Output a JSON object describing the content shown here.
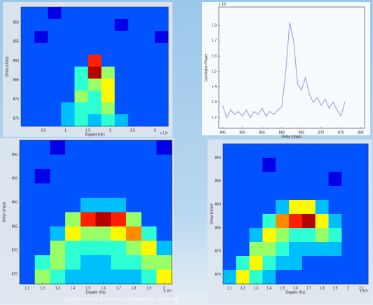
{
  "chart_data": [
    {
      "type": "heatmap",
      "colormap": "jet",
      "y_reversed": true,
      "x_label": "Doppler (Hz)",
      "y_label": "Delay (chips)",
      "x_exponent": "x 10⁴",
      "xlim": [
        0,
        3.3
      ],
      "ylim": [
        846,
        877
      ],
      "xticks": [
        0.5,
        1,
        1.5,
        2,
        2.5,
        3
      ],
      "yticks": [
        850,
        855,
        860,
        865,
        870,
        875
      ],
      "z": [
        [
          2,
          2,
          1,
          2,
          2,
          2,
          2,
          2,
          2,
          2,
          2
        ],
        [
          2,
          2,
          2,
          2,
          2,
          2,
          2,
          1,
          2,
          2,
          2
        ],
        [
          2,
          1,
          2,
          2,
          2,
          2,
          2,
          2,
          2,
          2,
          1
        ],
        [
          2,
          2,
          2,
          2,
          2,
          2,
          2,
          2,
          2,
          2,
          2
        ],
        [
          2,
          2,
          2,
          2,
          2,
          8,
          2,
          2,
          2,
          2,
          2
        ],
        [
          2,
          2,
          2,
          2,
          4,
          9,
          5,
          2,
          2,
          2,
          2
        ],
        [
          2,
          2,
          2,
          2,
          4,
          5,
          6,
          2,
          2,
          2,
          2
        ],
        [
          2,
          2,
          2,
          2,
          5,
          4,
          6,
          2,
          2,
          2,
          2
        ],
        [
          2,
          2,
          2,
          3,
          4,
          4,
          5,
          2,
          2,
          2,
          2
        ],
        [
          2,
          2,
          2,
          3,
          4,
          3,
          4,
          3,
          2,
          2,
          2
        ]
      ]
    },
    {
      "type": "line",
      "x_label": "Delay (chips)",
      "y_label": "Correlation Power",
      "y_exponent": "x 10⁵",
      "color": "#aaa6e2",
      "xlim": [
        844,
        881
      ],
      "ylim": [
        1.13,
        1.92
      ],
      "xticks": [
        845,
        850,
        855,
        860,
        865,
        870,
        875,
        880
      ],
      "yticks": [
        1.2,
        1.3,
        1.4,
        1.5,
        1.6,
        1.7,
        1.8
      ],
      "x": [
        845,
        846,
        847,
        848,
        849,
        850,
        851,
        852,
        853,
        854,
        855,
        856,
        857,
        858,
        859,
        860,
        861,
        862,
        863,
        864,
        865,
        866,
        867,
        868,
        869,
        870,
        871,
        872,
        873,
        874,
        875,
        876
      ],
      "values": [
        1.28,
        1.2,
        1.25,
        1.22,
        1.24,
        1.21,
        1.25,
        1.2,
        1.24,
        1.22,
        1.26,
        1.21,
        1.24,
        1.22,
        1.25,
        1.27,
        1.5,
        1.82,
        1.7,
        1.42,
        1.38,
        1.46,
        1.35,
        1.3,
        1.33,
        1.28,
        1.32,
        1.26,
        1.3,
        1.25,
        1.21,
        1.3
      ]
    },
    {
      "type": "heatmap",
      "colormap": "jet",
      "y_reversed": true,
      "x_label": "Doppler (Hz)",
      "y_label": "Delay (chips)",
      "x_exponent": "x 10⁴",
      "xlim": [
        1.05,
        2.05
      ],
      "ylim": [
        847,
        877
      ],
      "xticks": [
        1.1,
        1.2,
        1.3,
        1.4,
        1.5,
        1.6,
        1.7,
        1.8,
        1.9,
        2
      ],
      "yticks": [
        850,
        855,
        860,
        865,
        870,
        875
      ],
      "z": [
        [
          2,
          2,
          1,
          2,
          2,
          2,
          2,
          2,
          2,
          1
        ],
        [
          2,
          2,
          2,
          2,
          2,
          2,
          2,
          2,
          2,
          2
        ],
        [
          2,
          1,
          2,
          2,
          2,
          2,
          2,
          2,
          2,
          2
        ],
        [
          2,
          2,
          2,
          2,
          2,
          2,
          2,
          2,
          2,
          2
        ],
        [
          2,
          2,
          2,
          2,
          3,
          3,
          3,
          2,
          2,
          2
        ],
        [
          2,
          2,
          2,
          5,
          8,
          9,
          8,
          5,
          2,
          2
        ],
        [
          2,
          2,
          3,
          6,
          5,
          5,
          6,
          7,
          4,
          2
        ],
        [
          2,
          2,
          5,
          4,
          4,
          4,
          4,
          5,
          6,
          3
        ],
        [
          2,
          4,
          5,
          4,
          3,
          3,
          4,
          4,
          5,
          5
        ],
        [
          2,
          5,
          4,
          3,
          3,
          3,
          3,
          3,
          4,
          6
        ]
      ]
    },
    {
      "type": "heatmap",
      "colormap": "jet",
      "y_reversed": true,
      "x_label": "Doppler (Hz)",
      "y_label": "Delay (chips)",
      "x_exponent": "x 10⁴",
      "xlim": [
        1.05,
        2.15
      ],
      "ylim": [
        847,
        877
      ],
      "xticks": [
        1.1,
        1.2,
        1.3,
        1.4,
        1.5,
        1.6,
        1.7,
        1.8,
        1.9,
        2,
        2.1
      ],
      "yticks": [
        850,
        855,
        860,
        865,
        870,
        875
      ],
      "z": [
        [
          2,
          2,
          2,
          2,
          2,
          2,
          2,
          2,
          2,
          2,
          2
        ],
        [
          2,
          2,
          2,
          1,
          2,
          2,
          2,
          2,
          2,
          2,
          2
        ],
        [
          2,
          2,
          2,
          2,
          2,
          2,
          2,
          2,
          1,
          2,
          2
        ],
        [
          2,
          2,
          2,
          2,
          2,
          2,
          2,
          2,
          2,
          2,
          2
        ],
        [
          2,
          2,
          2,
          2,
          3,
          6,
          6,
          3,
          2,
          2,
          2
        ],
        [
          2,
          2,
          2,
          4,
          7,
          8,
          9,
          6,
          3,
          2,
          2
        ],
        [
          2,
          2,
          3,
          6,
          5,
          4,
          4,
          5,
          4,
          2,
          2
        ],
        [
          2,
          2,
          5,
          5,
          4,
          3,
          3,
          3,
          3,
          2,
          2
        ],
        [
          2,
          4,
          6,
          4,
          3,
          3,
          2,
          2,
          2,
          2,
          2
        ],
        [
          3,
          6,
          4,
          3,
          2,
          2,
          2,
          2,
          2,
          2,
          2
        ]
      ]
    }
  ],
  "watermark": "Department of Electrical Engineering, National"
}
